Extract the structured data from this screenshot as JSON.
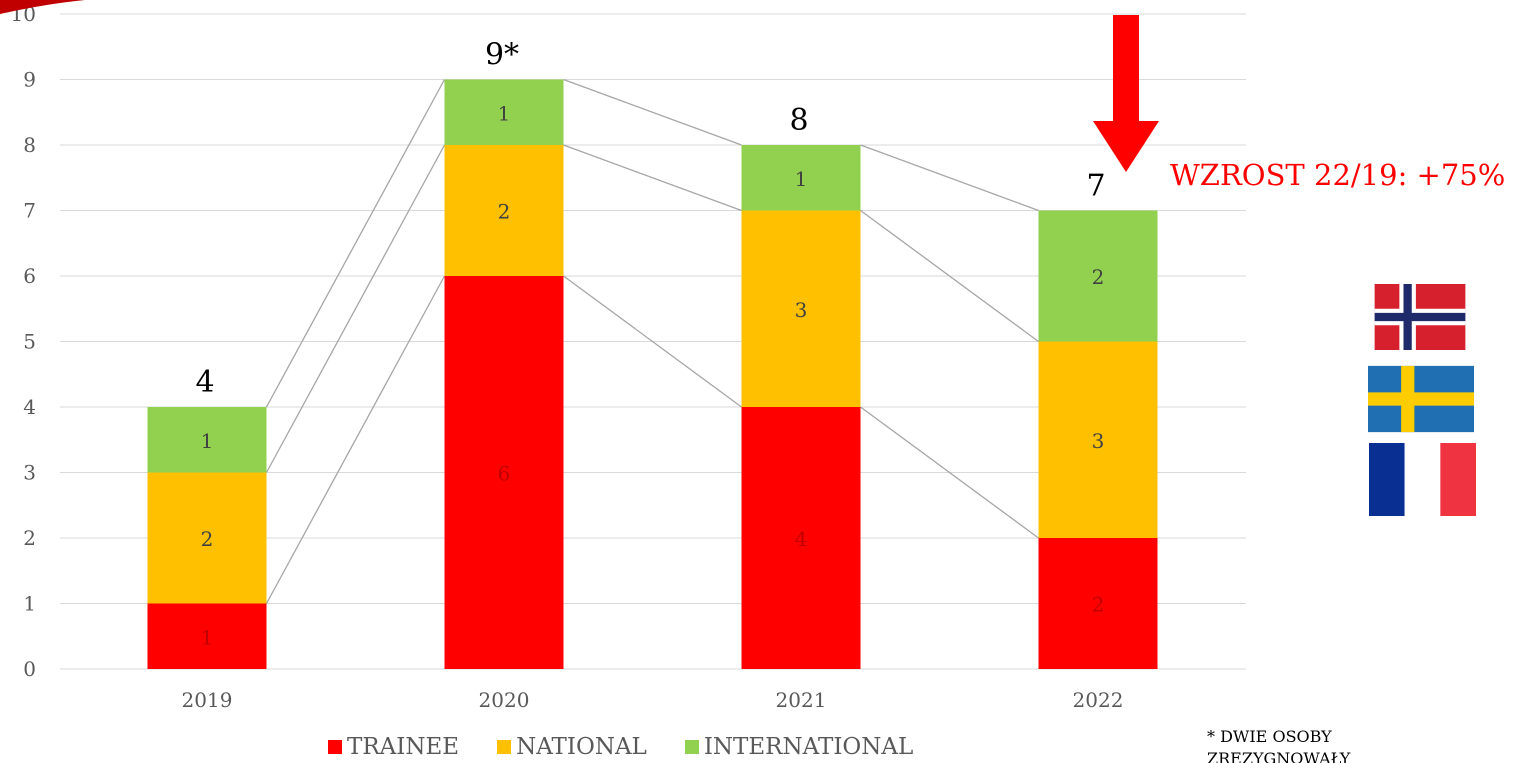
{
  "chart_data": {
    "type": "bar",
    "stacked": true,
    "categories": [
      "2019",
      "2020",
      "2021",
      "2022"
    ],
    "series": [
      {
        "name": "TRAINEE",
        "values": [
          1,
          6,
          4,
          2
        ],
        "color": "#ff0000"
      },
      {
        "name": "NATIONAL",
        "values": [
          2,
          2,
          3,
          3
        ],
        "color": "#ffc000"
      },
      {
        "name": "INTERNATIONAL",
        "values": [
          1,
          1,
          1,
          2
        ],
        "color": "#92d050"
      }
    ],
    "totals": [
      "4",
      "9*",
      "8",
      "7"
    ],
    "ylim": [
      0,
      10
    ],
    "yticks": [
      "0",
      "1",
      "2",
      "3",
      "4",
      "5",
      "6",
      "7",
      "8",
      "9",
      "10"
    ],
    "grid": true,
    "legend_position": "bottom",
    "series_lines": true
  },
  "annotation": {
    "text": "WZROST 22/19: +75%",
    "color": "#ff0000",
    "arrow": "red-down-arrow"
  },
  "footnote": "* DWIE OSOBY ZREZYGNOWAŁY",
  "flags": [
    "norway-flag",
    "sweden-flag",
    "france-flag"
  ]
}
